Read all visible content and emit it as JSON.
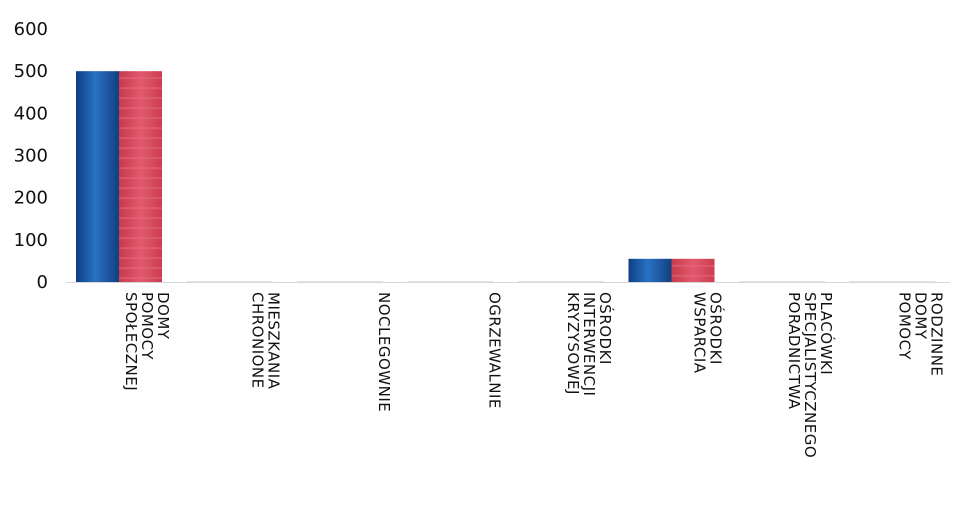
{
  "chart_data": {
    "type": "bar",
    "title": "",
    "xlabel": "",
    "ylabel": "",
    "ylim": [
      0,
      600
    ],
    "yticks": [
      0,
      100,
      200,
      300,
      400,
      500,
      600
    ],
    "grid": false,
    "legend": "none",
    "categories": [
      [
        "DOMY",
        "POMOCY",
        "SPOŁECZNEJ"
      ],
      [
        "MIESZKANIA",
        "CHRONIONE"
      ],
      [
        "NOCLEGOWNIE"
      ],
      [
        "OGRZEWALNIE"
      ],
      [
        "OŚRODKI",
        "INTERWENCJI",
        "KRYZYSOWEJ"
      ],
      [
        "OŚRODKI",
        "WSPARCIA"
      ],
      [
        "PLACÓWKI",
        "SPECJALISTYCZNEGO",
        "PORADNICTWA"
      ],
      [
        "RODZINNE",
        "DOMY",
        "POMOCY"
      ]
    ],
    "series": [
      {
        "values": [
          500,
          0,
          0,
          0,
          0,
          55,
          0,
          0
        ],
        "color": "#1f5fa8"
      },
      {
        "values": [
          500,
          0,
          0,
          0,
          0,
          55,
          0,
          0
        ],
        "color": "#d9465b"
      }
    ]
  }
}
